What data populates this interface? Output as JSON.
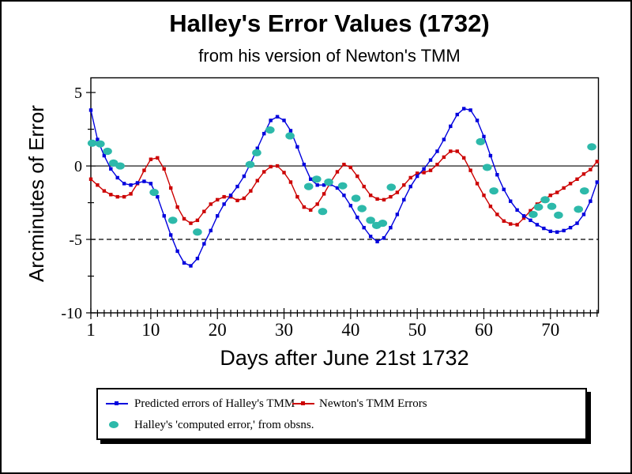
{
  "title": "Halley's Error Values (1732)",
  "subtitle": "from his version of Newton's TMM",
  "colors": {
    "predicted_blue": "#0000dd",
    "newton_red": "#cc0000",
    "observed_teal": "#2db9aa",
    "axis_black": "#000000",
    "background": "#ffffff"
  },
  "axes": {
    "x": {
      "label": "Days after June 21st 1732",
      "major_ticks": [
        1,
        10,
        20,
        30,
        40,
        50,
        60,
        70
      ],
      "minor_tick_step": 1,
      "min": 1,
      "max": 77.2
    },
    "y": {
      "label": "Arcminutes of Error",
      "major_ticks": [
        5,
        0,
        -5,
        -10
      ],
      "minor_ticks": [
        2.5,
        -2.5,
        -7.5
      ],
      "min": -10,
      "max": 6,
      "solid_reference_line": 0,
      "dashed_reference_line": -5
    }
  },
  "legend": {
    "items": [
      {
        "label": "Predicted errors of Halley's TMM",
        "marker": "line-square",
        "color": "#0000dd"
      },
      {
        "label": "Newton's TMM Errors",
        "marker": "line-square",
        "color": "#cc0000"
      },
      {
        "label": "Halley's 'computed error,' from obsns.",
        "marker": "dot",
        "color": "#2db9aa"
      }
    ]
  },
  "chart_data": {
    "type": "line",
    "title": "Halley's Error Values (1732)",
    "subtitle": "from his version of Newton's TMM",
    "xlabel": "Days after June 21st 1732",
    "ylabel": "Arcminutes of Error",
    "xlim": [
      1,
      77.2
    ],
    "ylim": [
      -10,
      6
    ],
    "grid": "zero line solid, -5 line dashed",
    "legend_position": "bottom box with drop shadow",
    "x": [
      1,
      2,
      3,
      4,
      5,
      6,
      7,
      8,
      9,
      10,
      11,
      12,
      13,
      14,
      15,
      16,
      17,
      18,
      19,
      20,
      21,
      22,
      23,
      24,
      25,
      26,
      27,
      28,
      29,
      30,
      31,
      32,
      33,
      34,
      35,
      36,
      37,
      38,
      39,
      40,
      41,
      42,
      43,
      44,
      45,
      46,
      47,
      48,
      49,
      50,
      51,
      52,
      53,
      54,
      55,
      56,
      57,
      58,
      59,
      60,
      61,
      62,
      63,
      64,
      65,
      66,
      67,
      68,
      69,
      70,
      71,
      72,
      73,
      74,
      75,
      76,
      77
    ],
    "series": [
      {
        "name": "Predicted errors of Halley's TMM",
        "color": "#0000dd",
        "marker": "square",
        "values": [
          3.8,
          1.8,
          0.7,
          -0.2,
          -0.8,
          -1.2,
          -1.3,
          -1.15,
          -1.05,
          -1.2,
          -2.1,
          -3.4,
          -4.7,
          -5.8,
          -6.6,
          -6.8,
          -6.3,
          -5.3,
          -4.4,
          -3.4,
          -2.6,
          -2.0,
          -1.4,
          -0.7,
          0.2,
          1.2,
          2.2,
          3.1,
          3.35,
          3.1,
          2.4,
          1.3,
          0.1,
          -0.9,
          -1.3,
          -1.3,
          -1.25,
          -1.5,
          -2.0,
          -2.7,
          -3.5,
          -4.2,
          -4.8,
          -5.15,
          -4.9,
          -4.2,
          -3.3,
          -2.3,
          -1.4,
          -0.7,
          -0.2,
          0.4,
          1.0,
          1.8,
          2.7,
          3.5,
          3.9,
          3.8,
          3.1,
          2.0,
          0.7,
          -0.6,
          -1.6,
          -2.4,
          -3.0,
          -3.4,
          -3.7,
          -4.0,
          -4.25,
          -4.45,
          -4.5,
          -4.4,
          -4.2,
          -3.9,
          -3.3,
          -2.4,
          -1.1
        ]
      },
      {
        "name": "Newton's TMM Errors",
        "color": "#cc0000",
        "marker": "square",
        "values": [
          -0.9,
          -1.3,
          -1.7,
          -1.95,
          -2.1,
          -2.1,
          -1.9,
          -1.2,
          -0.3,
          0.45,
          0.55,
          -0.2,
          -1.5,
          -2.8,
          -3.6,
          -3.9,
          -3.7,
          -3.1,
          -2.6,
          -2.3,
          -2.1,
          -2.1,
          -2.35,
          -2.2,
          -1.7,
          -1.0,
          -0.4,
          -0.05,
          0.0,
          -0.45,
          -1.1,
          -2.1,
          -2.8,
          -3.0,
          -2.6,
          -1.9,
          -1.1,
          -0.4,
          0.1,
          -0.1,
          -0.7,
          -1.4,
          -2.0,
          -2.25,
          -2.3,
          -2.1,
          -1.8,
          -1.3,
          -0.8,
          -0.5,
          -0.45,
          -0.3,
          0.1,
          0.6,
          1.0,
          1.0,
          0.55,
          -0.3,
          -1.2,
          -2.0,
          -2.75,
          -3.3,
          -3.75,
          -3.95,
          -4.0,
          -3.55,
          -3.05,
          -2.6,
          -2.3,
          -2.0,
          -1.8,
          -1.5,
          -1.2,
          -0.9,
          -0.55,
          -0.25,
          0.3
        ]
      }
    ],
    "scatter": {
      "name": "Halley's 'computed error,' from obsns.",
      "color": "#2db9aa",
      "marker": "ellipse",
      "points": [
        [
          1.2,
          1.55
        ],
        [
          2.4,
          1.5
        ],
        [
          3.5,
          1.0
        ],
        [
          4.4,
          0.2
        ],
        [
          5.4,
          0.0
        ],
        [
          10.5,
          -1.8
        ],
        [
          13.3,
          -3.7
        ],
        [
          17.0,
          -4.5
        ],
        [
          24.9,
          0.1
        ],
        [
          25.9,
          0.9
        ],
        [
          27.9,
          2.45
        ],
        [
          30.9,
          2.05
        ],
        [
          33.7,
          -1.4
        ],
        [
          34.9,
          -0.9
        ],
        [
          35.8,
          -3.1
        ],
        [
          36.7,
          -1.1
        ],
        [
          38.8,
          -1.35
        ],
        [
          40.8,
          -2.2
        ],
        [
          41.7,
          -2.9
        ],
        [
          43.0,
          -3.7
        ],
        [
          43.9,
          -4.05
        ],
        [
          44.8,
          -3.9
        ],
        [
          46.1,
          -1.45
        ],
        [
          59.5,
          1.65
        ],
        [
          60.5,
          -0.1
        ],
        [
          61.5,
          -1.7
        ],
        [
          67.4,
          -3.3
        ],
        [
          68.2,
          -2.8
        ],
        [
          69.2,
          -2.3
        ],
        [
          70.2,
          -2.75
        ],
        [
          71.2,
          -3.35
        ],
        [
          74.2,
          -2.95
        ],
        [
          75.1,
          -1.7
        ],
        [
          76.2,
          1.3
        ]
      ]
    }
  }
}
